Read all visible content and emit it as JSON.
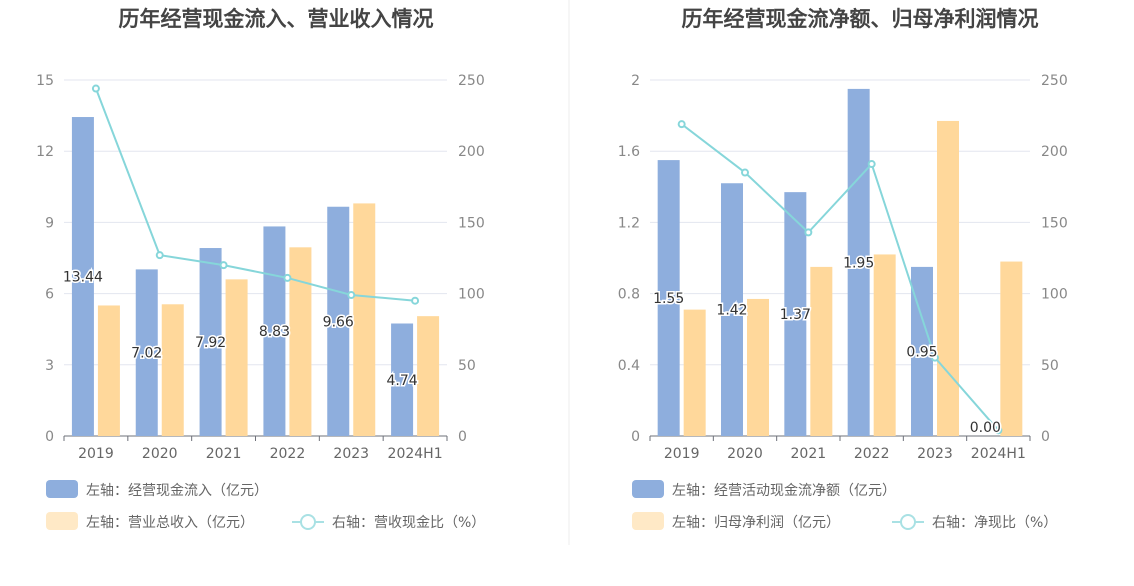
{
  "chart_data": [
    {
      "type": "bar",
      "title": "历年经营现金流入、营业收入情况",
      "categories": [
        "2019",
        "2020",
        "2021",
        "2022",
        "2023",
        "2024H1"
      ],
      "left_axis": {
        "range": [
          0,
          15
        ],
        "ticks": [
          "0",
          "3",
          "6",
          "9",
          "12",
          "15"
        ]
      },
      "right_axis": {
        "range": [
          0,
          250
        ],
        "ticks": [
          "0",
          "50",
          "100",
          "150",
          "200",
          "250"
        ]
      },
      "series": [
        {
          "name": "左轴：经营现金流入（亿元）",
          "type": "bar",
          "axis": "left",
          "color": "#8eaedd",
          "values": [
            13.44,
            7.02,
            7.92,
            8.83,
            9.66,
            4.74
          ],
          "labels": [
            "13.44",
            "7.02",
            "7.92",
            "8.83",
            "9.66",
            "4.74"
          ]
        },
        {
          "name": "左轴：营业总收入（亿元）",
          "type": "bar",
          "axis": "left",
          "color": "#ffd89b",
          "values": [
            5.5,
            5.55,
            6.6,
            7.95,
            9.8,
            5.05
          ]
        },
        {
          "name": "右轴：营收现金比（%）",
          "type": "line",
          "axis": "right",
          "color": "#86d6da",
          "values": [
            244,
            127,
            120,
            111,
            99,
            95
          ]
        }
      ],
      "grid": true,
      "legend_position": "bottom-left"
    },
    {
      "type": "bar",
      "title": "历年经营现金流净额、归母净利润情况",
      "categories": [
        "2019",
        "2020",
        "2021",
        "2022",
        "2023",
        "2024H1"
      ],
      "left_axis": {
        "range": [
          0,
          2
        ],
        "ticks": [
          "0",
          "0.4",
          "0.8",
          "1.2",
          "1.6",
          "2"
        ]
      },
      "right_axis": {
        "range": [
          0,
          250
        ],
        "ticks": [
          "0",
          "50",
          "100",
          "150",
          "200",
          "250"
        ]
      },
      "series": [
        {
          "name": "左轴：经营活动现金流净额（亿元）",
          "type": "bar",
          "axis": "left",
          "color": "#8eaedd",
          "values": [
            1.55,
            1.42,
            1.37,
            1.95,
            0.95,
            0.0
          ],
          "labels": [
            "1.55",
            "1.42",
            "1.37",
            "1.95",
            "0.95",
            "0.00"
          ]
        },
        {
          "name": "左轴：归母净利润（亿元）",
          "type": "bar",
          "axis": "left",
          "color": "#ffd89b",
          "values": [
            0.71,
            0.77,
            0.95,
            1.02,
            1.77,
            0.98
          ]
        },
        {
          "name": "右轴：净现比（%）",
          "type": "line",
          "axis": "right",
          "color": "#86d6da",
          "values": [
            219,
            185,
            143,
            191,
            55,
            4
          ]
        }
      ],
      "grid": true,
      "legend_position": "bottom-left"
    }
  ]
}
